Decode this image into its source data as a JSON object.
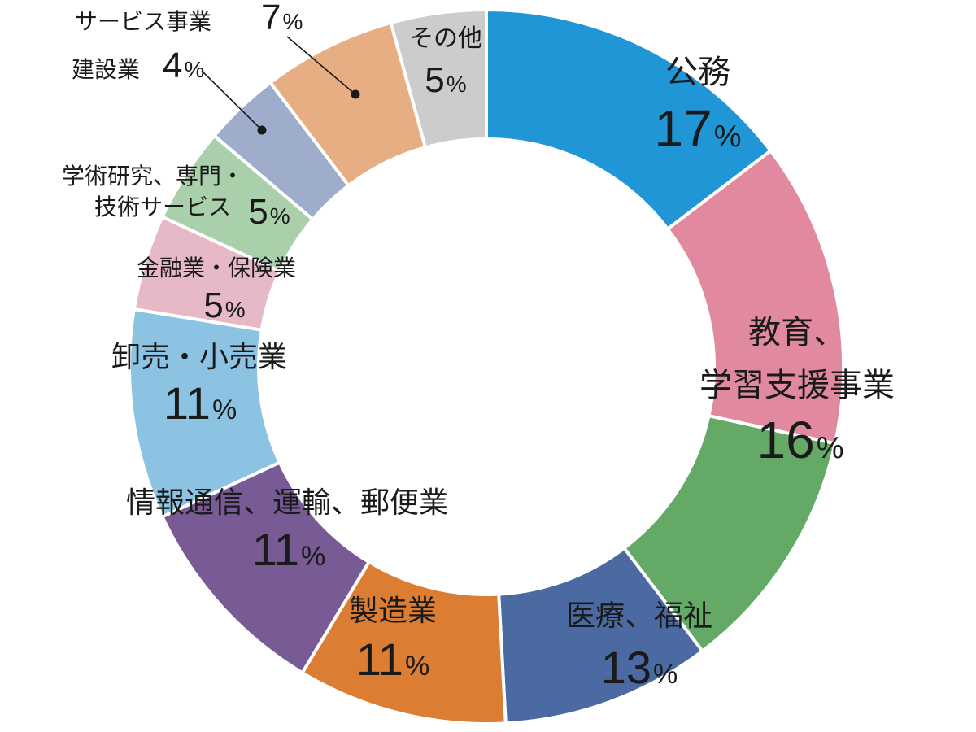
{
  "chart_data": {
    "type": "pie",
    "variant": "donut",
    "title": "",
    "unit": "%",
    "start": "12 o'clock",
    "direction": "clockwise",
    "slices": [
      {
        "label": "公務",
        "value": 17,
        "value_label": "17",
        "color": "#2196d6"
      },
      {
        "label": "教育、学習支援事業",
        "label_lines": [
          "教育、",
          "学習支援事業"
        ],
        "value": 16,
        "value_label": "16",
        "color": "#e0899f"
      },
      {
        "label": "医療、福祉",
        "value": 13,
        "value_label": "13",
        "color": "#64aa66"
      },
      {
        "label": "医療、福祉",
        "value": 11,
        "value_label": "",
        "color": "#4a6aa1"
      },
      {
        "label": "製造業",
        "value": 11,
        "value_label": "11",
        "color": "#db7d32"
      },
      {
        "label": "情報通信、運輸、郵便業",
        "value": 11,
        "value_label": "11",
        "color": "#785a95"
      },
      {
        "label": "卸売・小売業",
        "value": 11,
        "value_label": "11",
        "color": "#8cc3e2"
      },
      {
        "label": "金融業・保険業",
        "value": 5,
        "value_label": "5",
        "color": "#e7b8c6"
      },
      {
        "label": "学術研究、専門・技術サービス",
        "label_lines": [
          "学術研究、専門・",
          "技術サービス"
        ],
        "value": 5,
        "value_label": "5",
        "color": "#a9d0ab"
      },
      {
        "label": "建設業",
        "value": 4,
        "value_label": "4",
        "color": "#9eadcb"
      },
      {
        "label": "サービス事業",
        "value": 7,
        "value_label": "7",
        "color": "#e6ae82"
      },
      {
        "label": "その他",
        "value": 5,
        "value_label": "5",
        "color": "#cccccc"
      }
    ]
  }
}
